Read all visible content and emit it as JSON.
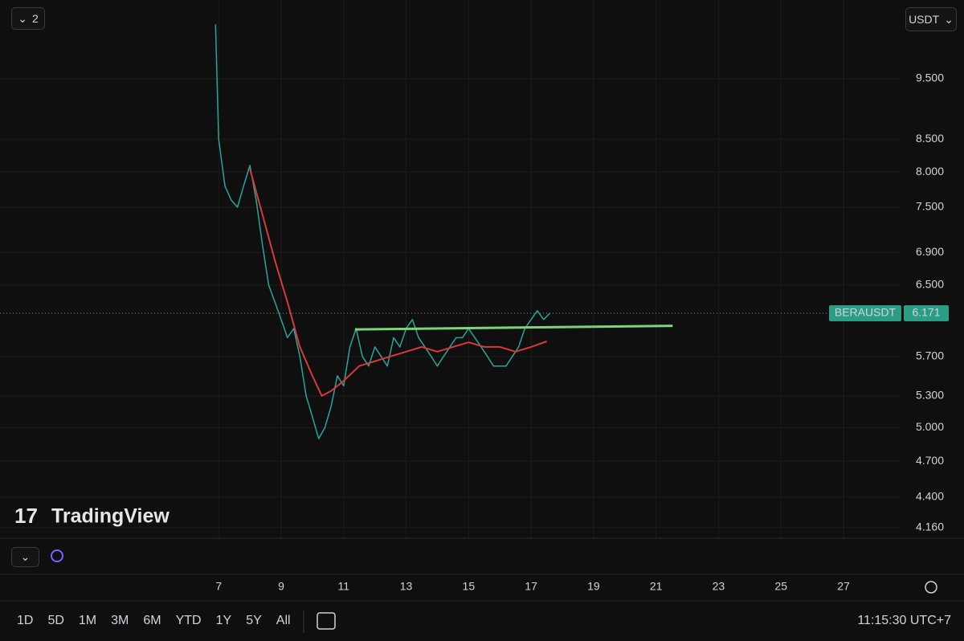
{
  "chart_data": {
    "type": "line",
    "log_scale": true,
    "grid": true,
    "xlim": [
      0,
      28.8
    ],
    "ylim": [
      4.08,
      10.98
    ],
    "xticks": [
      7,
      9,
      11,
      13,
      15,
      17,
      19,
      21,
      23,
      25,
      27
    ],
    "yticks": [
      {
        "value": 9.5,
        "label": "9.500"
      },
      {
        "value": 8.5,
        "label": "8.500"
      },
      {
        "value": 8.0,
        "label": "8.000"
      },
      {
        "value": 7.5,
        "label": "7.500"
      },
      {
        "value": 6.9,
        "label": "6.900"
      },
      {
        "value": 6.5,
        "label": "6.500"
      },
      {
        "value": 5.7,
        "label": "5.700"
      },
      {
        "value": 5.3,
        "label": "5.300"
      },
      {
        "value": 5.0,
        "label": "5.000"
      },
      {
        "value": 4.7,
        "label": "4.700"
      },
      {
        "value": 4.4,
        "label": "4.400"
      },
      {
        "value": 4.16,
        "label": "4.160"
      }
    ],
    "series": [
      {
        "color": "#26a69a",
        "width": 1.5,
        "x": [
          6.9,
          7.0,
          7.2,
          7.4,
          7.6,
          7.8,
          8.0,
          8.2,
          8.4,
          8.6,
          8.8,
          9.0,
          9.2,
          9.4,
          9.6,
          9.8,
          10.0,
          10.2,
          10.4,
          10.6,
          10.8,
          11.0,
          11.2,
          11.4,
          11.6,
          11.8,
          12.0,
          12.2,
          12.4,
          12.6,
          12.8,
          13.0,
          13.2,
          13.4,
          13.6,
          13.8,
          14.0,
          14.2,
          14.4,
          14.6,
          14.8,
          15.0,
          15.2,
          15.4,
          15.6,
          15.8,
          16.0,
          16.2,
          16.4,
          16.6,
          16.8,
          17.0,
          17.2,
          17.4,
          17.6
        ],
        "values": [
          10.5,
          8.5,
          7.8,
          7.6,
          7.5,
          7.8,
          8.1,
          7.6,
          7.0,
          6.5,
          6.3,
          6.1,
          5.9,
          6.0,
          5.7,
          5.3,
          5.1,
          4.9,
          5.0,
          5.2,
          5.5,
          5.4,
          5.8,
          6.0,
          5.7,
          5.6,
          5.8,
          5.7,
          5.6,
          5.9,
          5.8,
          6.0,
          6.1,
          5.9,
          5.8,
          5.7,
          5.6,
          5.7,
          5.8,
          5.9,
          5.9,
          6.0,
          5.9,
          5.8,
          5.7,
          5.6,
          5.6,
          5.6,
          5.7,
          5.8,
          6.0,
          6.1,
          6.2,
          6.1,
          6.17
        ]
      },
      {
        "color": "#d83a3a",
        "width": 2,
        "x": [
          8.0,
          8.4,
          8.8,
          9.2,
          9.6,
          10.0,
          10.3,
          10.6,
          11.0,
          11.5,
          12.0,
          12.5,
          13.0,
          13.5,
          14.0,
          14.5,
          15.0,
          15.5,
          16.0,
          16.5,
          17.0,
          17.5
        ],
        "values": [
          8.05,
          7.4,
          6.8,
          6.3,
          5.8,
          5.5,
          5.3,
          5.35,
          5.45,
          5.6,
          5.65,
          5.7,
          5.75,
          5.8,
          5.75,
          5.8,
          5.85,
          5.8,
          5.8,
          5.75,
          5.8,
          5.86
        ]
      },
      {
        "color": "#7ed37a",
        "width": 3,
        "x": [
          11.36,
          21.53
        ],
        "values": [
          5.99,
          6.03
        ]
      }
    ],
    "last_price": {
      "symbol": "BERAUSDT",
      "value": 6.171
    }
  },
  "ui": {
    "layout_count": "2",
    "currency": "USDT",
    "watermark": "TradingView",
    "ranges": [
      "1D",
      "5D",
      "1M",
      "3M",
      "6M",
      "YTD",
      "1Y",
      "5Y",
      "All"
    ],
    "clock": "11:15:30 UTC+7"
  }
}
